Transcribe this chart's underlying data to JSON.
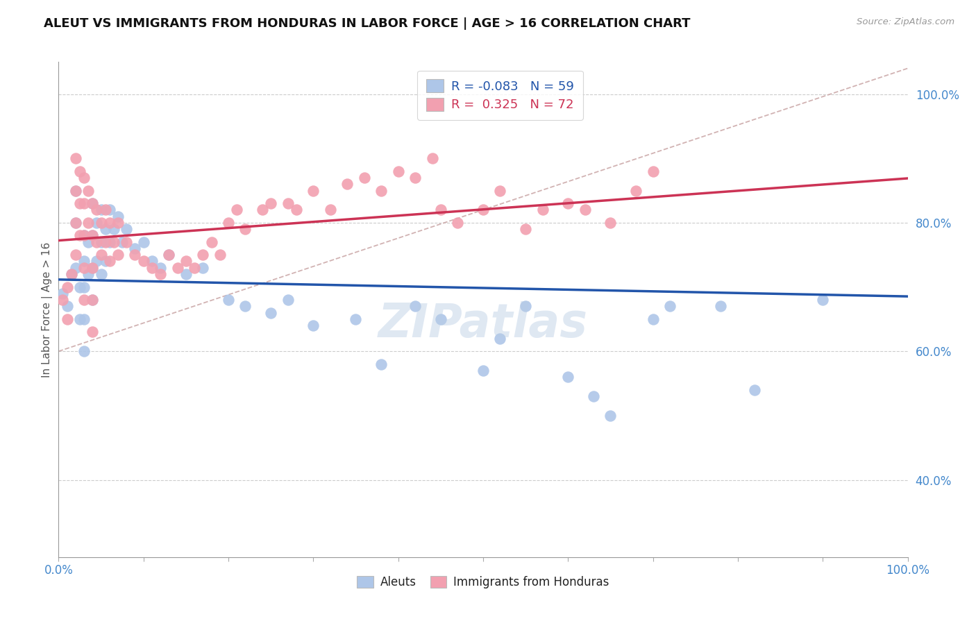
{
  "title": "ALEUT VS IMMIGRANTS FROM HONDURAS IN LABOR FORCE | AGE > 16 CORRELATION CHART",
  "source": "Source: ZipAtlas.com",
  "ylabel": "In Labor Force | Age > 16",
  "xlim": [
    0.0,
    1.0
  ],
  "ylim": [
    0.28,
    1.05
  ],
  "y_ticks": [
    0.4,
    0.6,
    0.8,
    1.0
  ],
  "y_ticklabels": [
    "40.0%",
    "60.0%",
    "80.0%",
    "100.0%"
  ],
  "x_ticklabels_left": "0.0%",
  "x_ticklabels_right": "100.0%",
  "legend_R_aleuts": "-0.083",
  "legend_N_aleuts": "59",
  "legend_R_honduras": "0.325",
  "legend_N_honduras": "72",
  "aleuts_color": "#aec6e8",
  "honduras_color": "#f2a0b0",
  "trendline_aleuts_color": "#2255aa",
  "trendline_honduras_color": "#cc3355",
  "dashed_line_color": "#ccaaaa",
  "watermark": "ZIPatlas",
  "aleuts_x": [
    0.005,
    0.01,
    0.015,
    0.02,
    0.02,
    0.02,
    0.025,
    0.025,
    0.03,
    0.03,
    0.03,
    0.03,
    0.03,
    0.035,
    0.035,
    0.04,
    0.04,
    0.04,
    0.04,
    0.045,
    0.045,
    0.05,
    0.05,
    0.05,
    0.055,
    0.055,
    0.06,
    0.06,
    0.065,
    0.07,
    0.075,
    0.08,
    0.09,
    0.1,
    0.11,
    0.12,
    0.13,
    0.15,
    0.17,
    0.2,
    0.22,
    0.25,
    0.27,
    0.3,
    0.35,
    0.38,
    0.42,
    0.45,
    0.5,
    0.52,
    0.55,
    0.6,
    0.63,
    0.65,
    0.7,
    0.72,
    0.78,
    0.82,
    0.9
  ],
  "aleuts_y": [
    0.69,
    0.67,
    0.72,
    0.85,
    0.8,
    0.73,
    0.7,
    0.65,
    0.78,
    0.74,
    0.7,
    0.65,
    0.6,
    0.77,
    0.72,
    0.83,
    0.78,
    0.73,
    0.68,
    0.8,
    0.74,
    0.82,
    0.77,
    0.72,
    0.79,
    0.74,
    0.82,
    0.77,
    0.79,
    0.81,
    0.77,
    0.79,
    0.76,
    0.77,
    0.74,
    0.73,
    0.75,
    0.72,
    0.73,
    0.68,
    0.67,
    0.66,
    0.68,
    0.64,
    0.65,
    0.58,
    0.67,
    0.65,
    0.57,
    0.62,
    0.67,
    0.56,
    0.53,
    0.5,
    0.65,
    0.67,
    0.67,
    0.54,
    0.68
  ],
  "honduras_x": [
    0.005,
    0.01,
    0.01,
    0.015,
    0.02,
    0.02,
    0.02,
    0.02,
    0.025,
    0.025,
    0.025,
    0.03,
    0.03,
    0.03,
    0.03,
    0.03,
    0.035,
    0.035,
    0.04,
    0.04,
    0.04,
    0.04,
    0.04,
    0.045,
    0.045,
    0.05,
    0.05,
    0.055,
    0.055,
    0.06,
    0.06,
    0.065,
    0.07,
    0.07,
    0.08,
    0.09,
    0.1,
    0.11,
    0.12,
    0.13,
    0.14,
    0.15,
    0.16,
    0.17,
    0.18,
    0.19,
    0.2,
    0.21,
    0.22,
    0.24,
    0.25,
    0.27,
    0.28,
    0.3,
    0.32,
    0.34,
    0.36,
    0.38,
    0.4,
    0.42,
    0.44,
    0.45,
    0.47,
    0.5,
    0.52,
    0.55,
    0.57,
    0.6,
    0.62,
    0.65,
    0.68,
    0.7
  ],
  "honduras_y": [
    0.68,
    0.7,
    0.65,
    0.72,
    0.9,
    0.85,
    0.8,
    0.75,
    0.88,
    0.83,
    0.78,
    0.87,
    0.83,
    0.78,
    0.73,
    0.68,
    0.85,
    0.8,
    0.83,
    0.78,
    0.73,
    0.68,
    0.63,
    0.82,
    0.77,
    0.8,
    0.75,
    0.82,
    0.77,
    0.8,
    0.74,
    0.77,
    0.8,
    0.75,
    0.77,
    0.75,
    0.74,
    0.73,
    0.72,
    0.75,
    0.73,
    0.74,
    0.73,
    0.75,
    0.77,
    0.75,
    0.8,
    0.82,
    0.79,
    0.82,
    0.83,
    0.83,
    0.82,
    0.85,
    0.82,
    0.86,
    0.87,
    0.85,
    0.88,
    0.87,
    0.9,
    0.82,
    0.8,
    0.82,
    0.85,
    0.79,
    0.82,
    0.83,
    0.82,
    0.8,
    0.85,
    0.88
  ],
  "background_color": "#ffffff",
  "grid_color": "#cccccc"
}
